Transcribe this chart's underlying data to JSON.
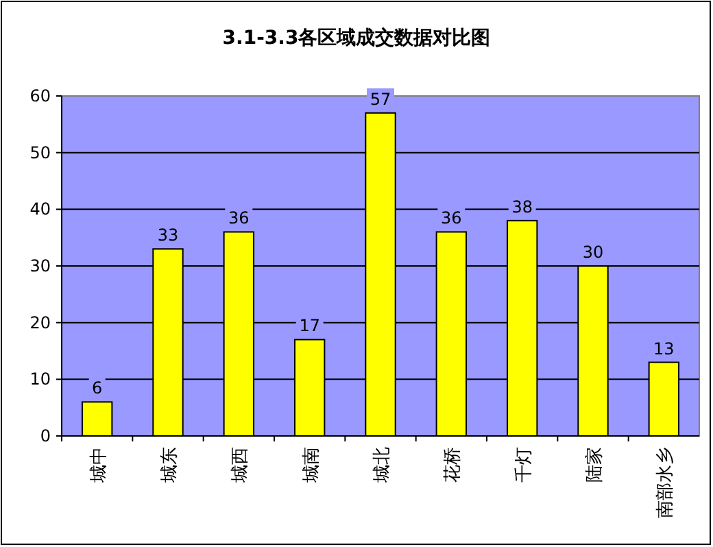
{
  "chart_data": {
    "type": "bar",
    "title": "3.1-3.3各区域成交数据对比图",
    "categories": [
      "城中",
      "城东",
      "城西",
      "城南",
      "城北",
      "花桥",
      "千灯",
      "陆家",
      "南部水乡"
    ],
    "values": [
      6,
      33,
      36,
      17,
      57,
      36,
      38,
      30,
      13
    ],
    "color": "#ffff00",
    "ylim": [
      0,
      60
    ],
    "yticks": [
      0,
      10,
      20,
      30,
      40,
      50,
      60
    ],
    "grid": "y",
    "data_labels": true
  }
}
